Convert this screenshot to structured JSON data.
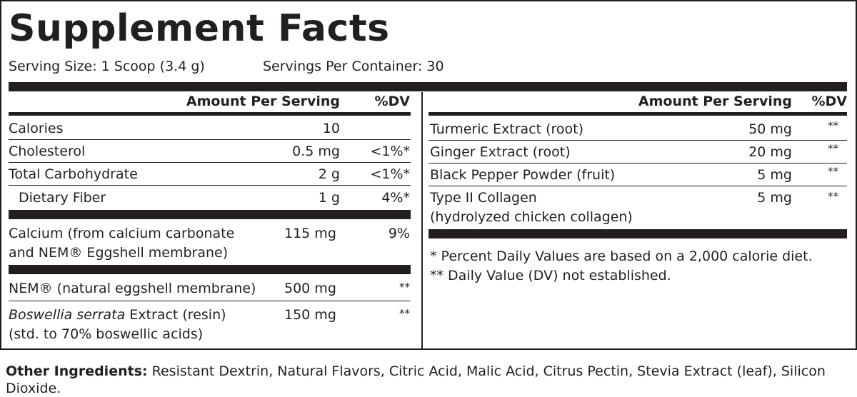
{
  "title": "Supplement Facts",
  "serving_size": "Serving Size: 1 Scoop (3.4 g)",
  "servings_per_container": "Servings Per Container: 30",
  "left": {
    "header": {
      "amount": "Amount Per Serving",
      "dv": "%DV"
    },
    "rows": [
      {
        "name": "Calories",
        "amount": "10",
        "dv": ""
      },
      {
        "name": "Cholesterol",
        "amount": "0.5 mg",
        "dv": "<1%*"
      },
      {
        "name": "Total Carbohydrate",
        "amount": "2 g",
        "dv": "<1%*"
      },
      {
        "name": "Dietary Fiber",
        "amount": "1 g",
        "dv": "4%*"
      },
      {
        "name_line1": "Calcium (from calcium carbonate",
        "name_line2": "and NEM® Eggshell membrane)",
        "amount": "115 mg",
        "dv": "9%"
      },
      {
        "name": "NEM® (natural eggshell membrane)",
        "amount": "500 mg",
        "dv": "**"
      },
      {
        "name_italic": "Boswellia serrata",
        "name_rest": " Extract (resin)",
        "name_line2": "(std. to 70% boswellic acids)",
        "amount": "150 mg",
        "dv": "**"
      }
    ]
  },
  "right": {
    "header": {
      "amount": "Amount Per Serving",
      "dv": "%DV"
    },
    "rows": [
      {
        "name": "Turmeric Extract (root)",
        "amount": "50 mg",
        "dv": "**"
      },
      {
        "name": "Ginger Extract (root)",
        "amount": "20 mg",
        "dv": "**"
      },
      {
        "name": "Black Pepper Powder (fruit)",
        "amount": "5 mg",
        "dv": "**"
      },
      {
        "name_line1": "Type II Collagen",
        "name_line2": "(hydrolyzed chicken collagen)",
        "amount": "5 mg",
        "dv": "**"
      }
    ],
    "footnotes": [
      "* Percent Daily Values are based on a 2,000 calorie diet.",
      "** Daily Value (DV) not established."
    ]
  },
  "other_ingredients": {
    "label": "Other Ingredients:",
    "text": " Resistant Dextrin, Natural Flavors, Citric Acid, Malic Acid, Citrus Pectin, Stevia Extract (leaf), Silicon Dioxide."
  }
}
